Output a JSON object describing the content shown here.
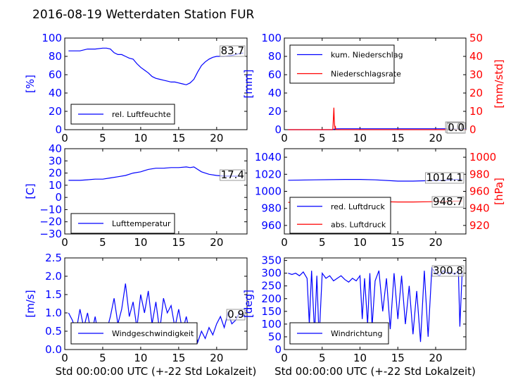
{
  "title": "2016-08-19 Wetterdaten Station FUR\u0001",
  "colors": {
    "primary": "#0000ff",
    "secondary": "#ff0000",
    "axis": "#000000"
  },
  "chart_data": [
    {
      "id": "humidity",
      "type": "line",
      "xlim": [
        0,
        24
      ],
      "xticks": [
        "0",
        "5",
        "10",
        "15",
        "20"
      ],
      "xtick_values": [
        0,
        5,
        10,
        15,
        20
      ],
      "ylabel": "[%]",
      "ylim": [
        0,
        100
      ],
      "yticks": [
        "0",
        "20",
        "40",
        "60",
        "80",
        "100"
      ],
      "ytick_values": [
        0,
        20,
        40,
        60,
        80,
        100
      ],
      "legend": [
        "rel. Luftfeuchte"
      ],
      "legend_position": "lower-left",
      "current_value": "83.7",
      "series": [
        {
          "name": "rel. Luftfeuchte",
          "axis": "left",
          "x": [
            0.5,
            1,
            2,
            3,
            4,
            5,
            5.5,
            6,
            6.5,
            7,
            7.5,
            8,
            8.5,
            9,
            9.5,
            10,
            10.5,
            11,
            11.5,
            12,
            12.5,
            13,
            13.5,
            14,
            14.5,
            15,
            15.5,
            16,
            16.5,
            17,
            17.5,
            18,
            18.5,
            19,
            19.5,
            20,
            20.5,
            21,
            22,
            23,
            23.5
          ],
          "y": [
            86,
            86,
            86,
            88,
            88,
            89,
            89,
            88,
            84,
            82,
            82,
            80,
            78,
            77,
            72,
            68,
            65,
            62,
            58,
            56,
            55,
            54,
            53,
            52,
            52,
            51,
            50,
            49,
            51,
            55,
            63,
            70,
            74,
            77,
            79,
            80,
            80,
            80,
            81,
            83,
            83.7
          ]
        }
      ]
    },
    {
      "id": "precipitation",
      "type": "line",
      "xlim": [
        0,
        24
      ],
      "xticks": [
        "0",
        "5",
        "10",
        "15",
        "20"
      ],
      "xtick_values": [
        0,
        5,
        10,
        15,
        20
      ],
      "ylabel": "[mm]",
      "ylim": [
        0,
        100
      ],
      "yticks": [
        "0",
        "20",
        "40",
        "60",
        "80",
        "100"
      ],
      "ytick_values": [
        0,
        20,
        40,
        60,
        80,
        100
      ],
      "y2label": "[mm/std]",
      "y2lim": [
        0,
        50
      ],
      "y2ticks": [
        "0",
        "10",
        "20",
        "30",
        "40",
        "50"
      ],
      "y2tick_values": [
        0,
        10,
        20,
        30,
        40,
        50
      ],
      "legend": [
        "kum. Niederschlag",
        "Niederschlagsrate"
      ],
      "legend_position": "upper-left",
      "current_value": "1.0",
      "current_value_2": "0.0",
      "series": [
        {
          "name": "kum. Niederschlag",
          "axis": "left",
          "x": [
            0.5,
            6.4,
            6.6,
            6.8,
            7.5,
            24
          ],
          "y": [
            0,
            0,
            0.6,
            0.9,
            1.0,
            1.0
          ]
        },
        {
          "name": "Niederschlagsrate",
          "axis": "right",
          "x": [
            0.5,
            6.4,
            6.45,
            6.5,
            6.55,
            6.6,
            6.65,
            6.7,
            6.75,
            6.8,
            24
          ],
          "y": [
            0,
            0,
            3,
            8,
            12,
            6,
            2,
            1,
            1.5,
            0,
            0
          ]
        }
      ]
    },
    {
      "id": "temperature",
      "type": "line",
      "xlim": [
        0,
        24
      ],
      "xticks": [
        "0",
        "5",
        "10",
        "15",
        "20"
      ],
      "xtick_values": [
        0,
        5,
        10,
        15,
        20
      ],
      "ylabel": "[C]",
      "ylim": [
        -30,
        40
      ],
      "yticks": [
        "−30",
        "−20",
        "−10",
        "0",
        "10",
        "20",
        "30",
        "40"
      ],
      "ytick_values": [
        -30,
        -20,
        -10,
        0,
        10,
        20,
        30,
        40
      ],
      "legend": [
        "Lufttemperatur"
      ],
      "legend_position": "lower-left",
      "current_value": "17.4",
      "series": [
        {
          "name": "Lufttemperatur",
          "axis": "left",
          "x": [
            0.5,
            1,
            2,
            3,
            4,
            5,
            6,
            7,
            8,
            9,
            10,
            10.5,
            11,
            12,
            13,
            14,
            15,
            16,
            16.5,
            17,
            17.5,
            18,
            18.5,
            19,
            20,
            21,
            22,
            23,
            23.5
          ],
          "y": [
            14,
            14,
            14,
            14.5,
            15,
            15,
            16,
            17,
            18,
            20,
            21,
            22,
            23,
            24,
            24,
            24.5,
            24.5,
            25,
            24.5,
            25,
            23,
            21,
            20,
            19,
            18,
            17.5,
            17.5,
            17.4,
            17.4
          ]
        }
      ]
    },
    {
      "id": "pressure",
      "type": "line",
      "xlim": [
        0,
        24
      ],
      "xticks": [
        "0",
        "5",
        "10",
        "15",
        "20"
      ],
      "xtick_values": [
        0,
        5,
        10,
        15,
        20
      ],
      "ylabel": "",
      "ylim": [
        950,
        1050
      ],
      "yticks": [
        "960",
        "980",
        "1000",
        "1020",
        "1040"
      ],
      "ytick_values": [
        960,
        980,
        1000,
        1020,
        1040
      ],
      "y2label": "[hPa]",
      "y2lim": [
        910,
        1010
      ],
      "y2ticks": [
        "920",
        "940",
        "960",
        "980",
        "1000"
      ],
      "y2tick_values": [
        920,
        940,
        960,
        980,
        1000
      ],
      "legend": [
        "red. Luftdruck",
        "abs. Luftdruck"
      ],
      "legend_position": "lower-left",
      "current_value": "1014.1",
      "current_value_2": "948.7",
      "series": [
        {
          "name": "red. Luftdruck",
          "axis": "left",
          "x": [
            0.5,
            4,
            8,
            10,
            12,
            15,
            17,
            19,
            21,
            23,
            23.5
          ],
          "y": [
            1013,
            1013.5,
            1014,
            1014,
            1013.5,
            1012,
            1012,
            1012.5,
            1013,
            1014,
            1014.1
          ]
        },
        {
          "name": "abs. Luftdruck",
          "axis": "right",
          "x": [
            0.5,
            4,
            8,
            10,
            12,
            15,
            17,
            19,
            21,
            23,
            23.5
          ],
          "y": [
            947,
            947.5,
            948,
            948.5,
            948,
            947.5,
            947.5,
            947.8,
            948.2,
            948.6,
            948.7
          ]
        }
      ]
    },
    {
      "id": "windspeed",
      "type": "line",
      "xlabel": "Std 00:00:00 UTC (+-22 Std Lokalzeit)",
      "xlim": [
        0,
        24
      ],
      "xticks": [
        "0",
        "5",
        "10",
        "15",
        "20"
      ],
      "xtick_values": [
        0,
        5,
        10,
        15,
        20
      ],
      "ylabel": "[m/s]",
      "ylim": [
        0,
        2.5
      ],
      "yticks": [
        "0.0",
        "0.5",
        "1.0",
        "1.5",
        "2.0",
        "2.5"
      ],
      "ytick_values": [
        0,
        0.5,
        1,
        1.5,
        2,
        2.5
      ],
      "legend": [
        "Windgeschwindigkeit"
      ],
      "legend_position": "lower-left",
      "current_value": "0.9",
      "series": [
        {
          "name": "Windgeschwindigkeit",
          "axis": "left",
          "x": [
            0.5,
            1,
            1.5,
            2,
            2.5,
            3,
            3.5,
            4,
            4.5,
            5,
            5.5,
            6,
            6.5,
            7,
            7.5,
            8,
            8.5,
            9,
            9.5,
            10,
            10.5,
            11,
            11.5,
            12,
            12.5,
            13,
            13.5,
            14,
            14.5,
            15,
            15.5,
            16,
            16.5,
            17,
            17.5,
            18,
            18.5,
            19,
            19.5,
            20,
            20.5,
            21,
            21.5,
            22,
            22.5,
            23,
            23.5
          ],
          "y": [
            1.0,
            0.8,
            0.5,
            1.1,
            0.6,
            1.0,
            0.4,
            0.9,
            0.3,
            0.6,
            0.5,
            0.9,
            1.4,
            0.7,
            1.1,
            1.8,
            0.9,
            1.3,
            0.6,
            1.5,
            1.0,
            1.6,
            0.7,
            1.3,
            0.5,
            1.4,
            1.0,
            1.2,
            0.6,
            1.1,
            0.5,
            0.9,
            0.4,
            0.7,
            0.2,
            0.5,
            0.3,
            0.6,
            0.4,
            0.7,
            0.9,
            0.6,
            1.0,
            0.7,
            0.8,
            1.0,
            0.9
          ]
        }
      ]
    },
    {
      "id": "winddirection",
      "type": "line",
      "xlabel": "Std 00:00:00 UTC (+-22 Std Lokalzeit)",
      "xlim": [
        0,
        24
      ],
      "xticks": [
        "0",
        "5",
        "10",
        "15",
        "20"
      ],
      "xtick_values": [
        0,
        5,
        10,
        15,
        20
      ],
      "ylabel": "[deg]",
      "ylim": [
        0,
        360
      ],
      "yticks": [
        "0",
        "50",
        "100",
        "150",
        "200",
        "250",
        "300",
        "350"
      ],
      "ytick_values": [
        0,
        50,
        100,
        150,
        200,
        250,
        300,
        350
      ],
      "legend": [
        "Windrichtung"
      ],
      "legend_position": "lower-left",
      "current_value": "300.8",
      "series": [
        {
          "name": "Windrichtung",
          "axis": "left",
          "x": [
            0.5,
            1,
            1.5,
            2,
            2.5,
            3,
            3.3,
            3.6,
            4,
            4.3,
            4.6,
            5,
            5.5,
            6,
            6.5,
            7,
            7.5,
            8,
            8.5,
            9,
            9.5,
            10,
            10.3,
            10.6,
            11,
            11.3,
            11.6,
            12,
            12.5,
            13,
            13.5,
            14,
            14.5,
            15,
            15.5,
            16,
            16.5,
            17,
            17.5,
            18,
            18.5,
            19,
            19.5,
            20,
            20.5,
            21,
            21.5,
            22,
            22.5,
            23,
            23.2,
            23.5
          ],
          "y": [
            300,
            295,
            300,
            290,
            305,
            280,
            100,
            310,
            60,
            290,
            40,
            300,
            280,
            290,
            270,
            280,
            290,
            275,
            265,
            280,
            270,
            290,
            120,
            280,
            100,
            300,
            90,
            270,
            310,
            150,
            280,
            80,
            300,
            120,
            290,
            100,
            250,
            60,
            230,
            30,
            310,
            50,
            320,
            300,
            290,
            310,
            300,
            305,
            295,
            310,
            90,
            300.8
          ]
        }
      ]
    }
  ]
}
